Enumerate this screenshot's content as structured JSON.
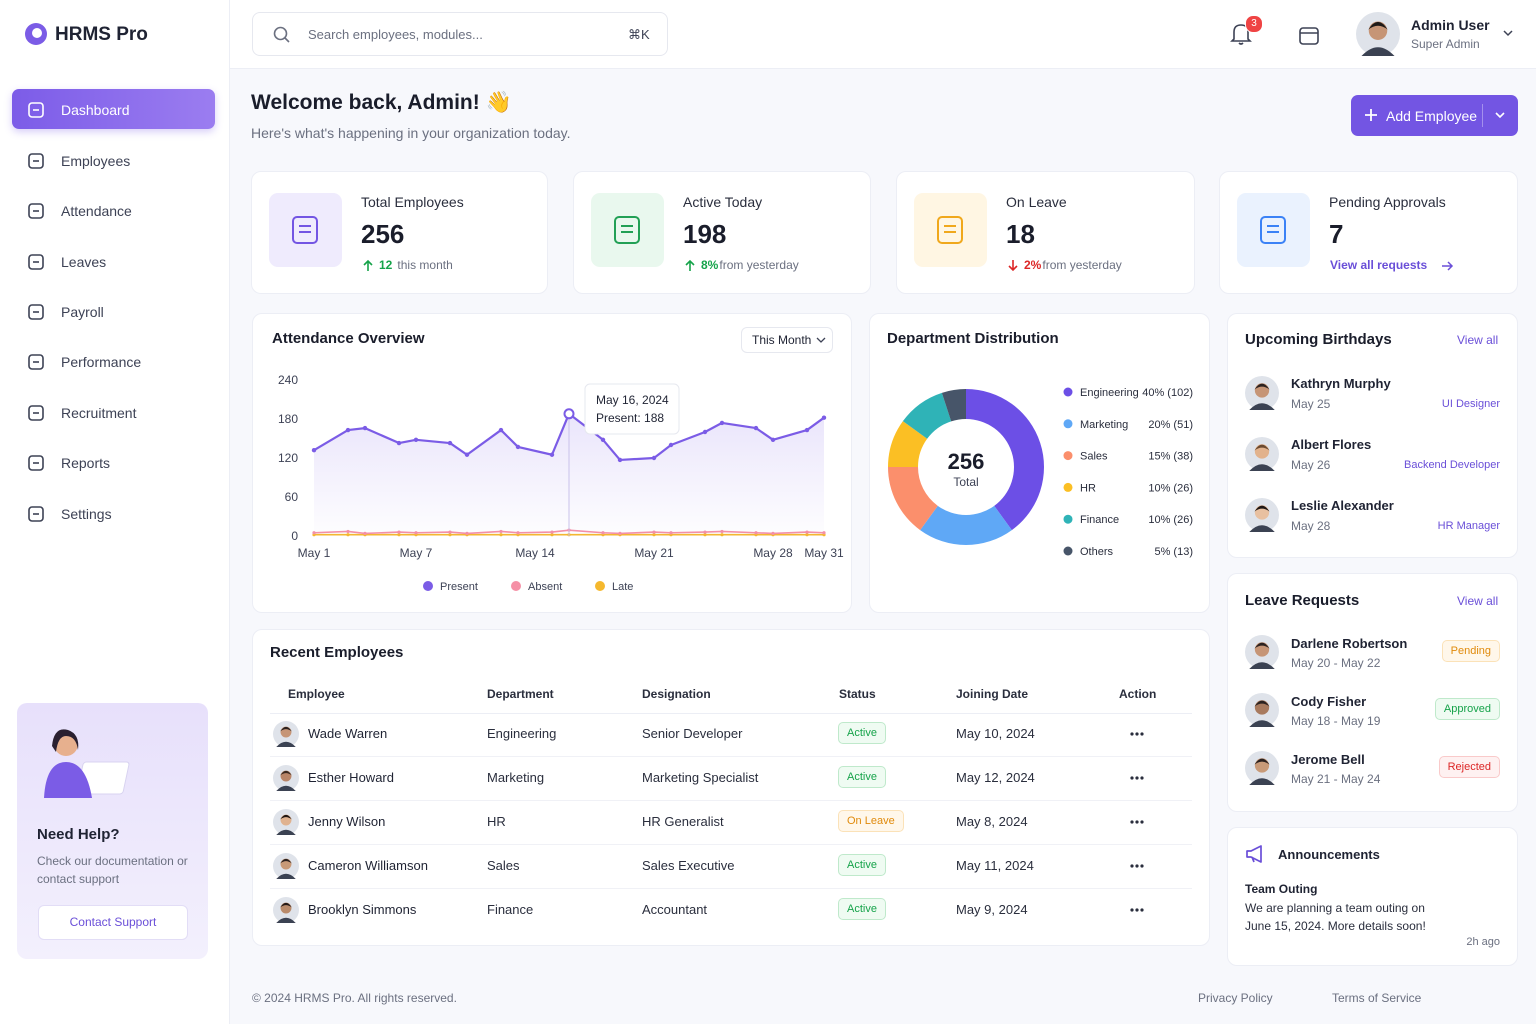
{
  "brand": "HRMS Pro",
  "sidebar": {
    "menu": [
      "Dashboard",
      "Employees",
      "Attendance",
      "Leaves",
      "Payroll",
      "Performance",
      "Recruitment",
      "Reports",
      "Settings"
    ],
    "help": {
      "title": "Need Help?",
      "text": "Check our documentation or contact support",
      "button": "Contact Support"
    }
  },
  "header": {
    "search_placeholder": "Search employees, modules...",
    "shortcut": "⌘K",
    "notifications": 3,
    "user": {
      "name": "Admin User",
      "role": "Super Admin"
    }
  },
  "welcome": {
    "title": "Welcome back, Admin! 👋",
    "subtitle": "Here's what's happening in your organization today.",
    "button": "Add Employee"
  },
  "stats": [
    {
      "label": "Total Employees",
      "value": 256,
      "change": "12",
      "note": "this month"
    },
    {
      "label": "Active Today",
      "value": 198,
      "change": "8%",
      "note": "from yesterday"
    },
    {
      "label": "On Leave",
      "value": 18,
      "change": "2%",
      "note": "from yesterday"
    },
    {
      "label": "Pending Approvals",
      "value": 7,
      "link": "View all requests"
    }
  ],
  "chart_data": [
    {
      "type": "line",
      "title": "Attendance Overview",
      "filter": "This Month",
      "x": [
        1,
        3,
        4,
        6,
        7,
        9,
        10,
        12,
        13,
        15,
        16,
        18,
        19,
        21,
        22,
        24,
        25,
        27,
        28,
        30,
        31
      ],
      "xlim": [
        1,
        31
      ],
      "xticks": [
        {
          "value": 1,
          "label": "May 1"
        },
        {
          "value": 7,
          "label": "May 7"
        },
        {
          "value": 14,
          "label": "May 14"
        },
        {
          "value": 21,
          "label": "May 21"
        },
        {
          "value": 28,
          "label": "May 28"
        },
        {
          "value": 31,
          "label": "May 31"
        }
      ],
      "ylim": [
        0,
        240
      ],
      "yticks": [
        0,
        60,
        120,
        180,
        240
      ],
      "grid": false,
      "series": [
        {
          "name": "Present",
          "color": "#7b5ce6",
          "values": [
            132,
            163,
            166,
            143,
            148,
            143,
            125,
            163,
            137,
            125,
            188,
            148,
            117,
            120,
            140,
            160,
            174,
            166,
            148,
            163,
            182
          ]
        },
        {
          "name": "Absent",
          "color": "#f590a6",
          "values": [
            5,
            7,
            4,
            6,
            5,
            6,
            4,
            7,
            5,
            6,
            9,
            5,
            4,
            6,
            5,
            6,
            7,
            5,
            4,
            6,
            5
          ]
        },
        {
          "name": "Late",
          "color": "#f5b82e",
          "values": [
            2,
            2,
            2,
            2,
            2,
            2,
            2,
            2,
            2,
            2,
            2,
            2,
            2,
            2,
            2,
            2,
            2,
            2,
            2,
            2,
            2
          ]
        }
      ],
      "tooltip": {
        "x": 16,
        "title": "May 16, 2024",
        "text": "Present: 188"
      }
    },
    {
      "type": "pie",
      "title": "Department Distribution",
      "center_value": 256,
      "center_label": "Total",
      "categories": [
        "Engineering",
        "Marketing",
        "Sales",
        "HR",
        "Finance",
        "Others"
      ],
      "values": [
        40,
        20,
        15,
        10,
        10,
        5
      ],
      "value_labels": [
        "40% (102)",
        "20% (51)",
        "15% (38)",
        "10% (26)",
        "10% (26)",
        "5% (13)"
      ],
      "colors": [
        "#6c4fe6",
        "#5fa8f6",
        "#fb8f6c",
        "#fbbf24",
        "#2fb3b7",
        "#475569"
      ]
    }
  ],
  "recent_employees": {
    "title": "Recent Employees",
    "columns": [
      "Employee",
      "Department",
      "Designation",
      "Status",
      "Joining Date",
      "Action"
    ],
    "rows": [
      [
        "Wade Warren",
        "Engineering",
        "Senior Developer",
        "Active",
        "May 10, 2024"
      ],
      [
        "Esther Howard",
        "Marketing",
        "Marketing Specialist",
        "Active",
        "May 12, 2024"
      ],
      [
        "Jenny Wilson",
        "HR",
        "HR Generalist",
        "On Leave",
        "May 8, 2024"
      ],
      [
        "Cameron Williamson",
        "Sales",
        "Sales Executive",
        "Active",
        "May 11, 2024"
      ],
      [
        "Brooklyn Simmons",
        "Finance",
        "Accountant",
        "Active",
        "May 9, 2024"
      ]
    ]
  },
  "birthdays": {
    "title": "Upcoming Birthdays",
    "link": "View all",
    "items": [
      {
        "name": "Kathryn Murphy",
        "date": "May 25",
        "role": "UI Designer"
      },
      {
        "name": "Albert Flores",
        "date": "May 26",
        "role": "Backend Developer"
      },
      {
        "name": "Leslie Alexander",
        "date": "May 28",
        "role": "HR Manager"
      }
    ]
  },
  "leave_requests": {
    "title": "Leave Requests",
    "link": "View all",
    "items": [
      {
        "name": "Darlene Robertson",
        "dates": "May 20 - May 22",
        "status": "Pending"
      },
      {
        "name": "Cody Fisher",
        "dates": "May 18 - May 19",
        "status": "Approved"
      },
      {
        "name": "Jerome Bell",
        "dates": "May 21 - May 24",
        "status": "Rejected"
      }
    ]
  },
  "announcements": {
    "title": "Announcements",
    "items": [
      {
        "title": "Team Outing",
        "text": "We are planning a team outing on June 15, 2024. More details soon!",
        "time": "2h ago"
      }
    ]
  },
  "footer": {
    "copyright": "© 2024 HRMS Pro. All rights reserved.",
    "links": [
      "Privacy Policy",
      "Terms of Service"
    ]
  }
}
